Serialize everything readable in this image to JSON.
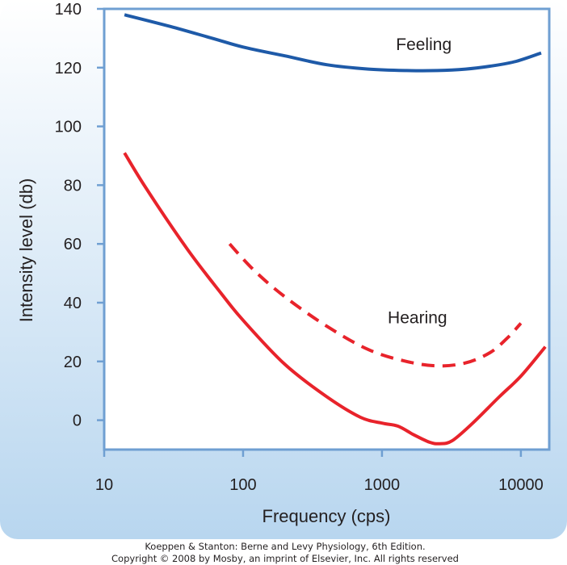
{
  "chart_data": {
    "type": "line",
    "title": "",
    "xlabel": "Frequency (cps)",
    "ylabel": "Intensity level (db)",
    "x_scale": "log",
    "xlim": [
      10,
      16000
    ],
    "ylim": [
      -10,
      140
    ],
    "x_ticks": [
      {
        "value": 10,
        "label": "10"
      },
      {
        "value": 100,
        "label": "100"
      },
      {
        "value": 1000,
        "label": "1000"
      },
      {
        "value": 10000,
        "label": "10000"
      }
    ],
    "y_ticks": [
      {
        "value": 0,
        "label": "0"
      },
      {
        "value": 20,
        "label": "20"
      },
      {
        "value": 40,
        "label": "40"
      },
      {
        "value": 60,
        "label": "60"
      },
      {
        "value": 80,
        "label": "80"
      },
      {
        "value": 100,
        "label": "100"
      },
      {
        "value": 120,
        "label": "120"
      },
      {
        "value": 140,
        "label": "140"
      }
    ],
    "grid": false,
    "series": [
      {
        "style": "solid",
        "color": "#1e5aa8",
        "x": [
          14,
          30,
          60,
          100,
          200,
          400,
          800,
          1500,
          2500,
          4000,
          6000,
          9000,
          14000
        ],
        "y": [
          138,
          134,
          130,
          127,
          124,
          121,
          119.5,
          119,
          119,
          119.5,
          120.5,
          122,
          125
        ]
      },
      {
        "style": "solid",
        "color": "#e8232b",
        "x": [
          14,
          20,
          40,
          70,
          100,
          200,
          400,
          700,
          1000,
          1300,
          1700,
          2200,
          2600,
          3200,
          4500,
          7000,
          10000,
          15000
        ],
        "y": [
          91,
          79,
          58,
          43,
          34,
          19,
          8,
          1,
          -1,
          -2,
          -5,
          -7.5,
          -8,
          -7,
          -1,
          8,
          15,
          25
        ]
      },
      {
        "style": "dashed",
        "color": "#e8232b",
        "x": [
          80,
          120,
          200,
          400,
          800,
          1500,
          2500,
          4000,
          6000,
          8000,
          10000
        ],
        "y": [
          60,
          51,
          42,
          32,
          24,
          20,
          18.5,
          19.5,
          23,
          28,
          33
        ]
      }
    ],
    "annotations": [
      {
        "text": "Feeling",
        "x": 2000,
        "y": 126
      },
      {
        "text": "Hearing",
        "x": 1800,
        "y": 33
      }
    ]
  },
  "colors": {
    "panel_top": "#ffffff",
    "panel_bottom": "#b8d6ef",
    "axis_frame": "#6f9fd2",
    "plot_bg": "#ffffff"
  },
  "credit": {
    "line1": "Koeppen & Stanton: Berne and Levy Physiology, 6th Edition.",
    "line2": "Copyright © 2008 by Mosby, an imprint of Elsevier, Inc. All rights reserved"
  }
}
